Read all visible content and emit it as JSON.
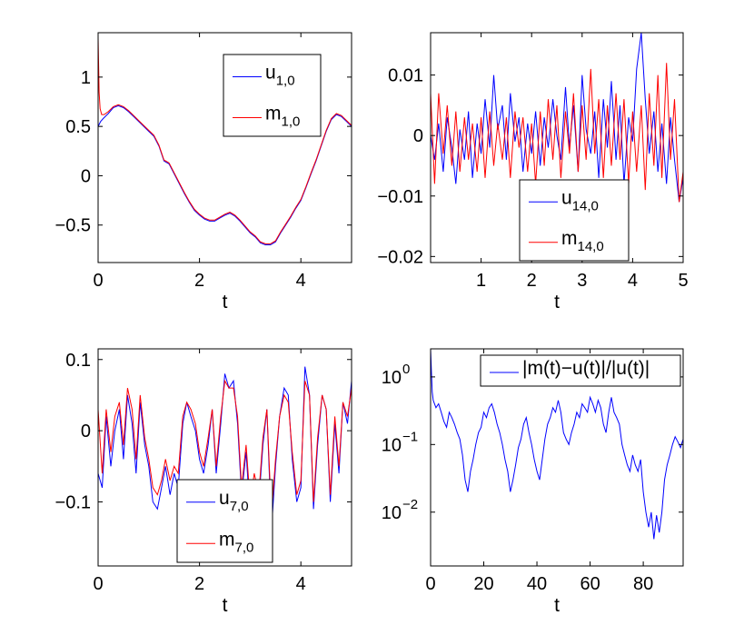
{
  "figure": {
    "background": "#ffffff"
  },
  "chart_data": [
    {
      "id": "tl",
      "type": "line",
      "xlabel": "t",
      "xlim": [
        0,
        5
      ],
      "ylim": [
        -0.88,
        1.45
      ],
      "yscale": "linear",
      "xticks": [
        0,
        2,
        4
      ],
      "xtick_labels": [
        "0",
        "2",
        "4"
      ],
      "yticks": [
        1,
        0.5,
        0,
        -0.5
      ],
      "ytick_labels": [
        "1",
        "0.5",
        "0",
        "−0.5"
      ],
      "legend_position": "top-right",
      "series": [
        {
          "name": "u",
          "sub": "1,0",
          "color": "#0000ff",
          "x": [
            0,
            0.02,
            0.05,
            0.1,
            0.2,
            0.3,
            0.4,
            0.5,
            0.6,
            0.7,
            0.8,
            0.9,
            1.0,
            1.1,
            1.2,
            1.3,
            1.4,
            1.5,
            1.6,
            1.7,
            1.8,
            1.9,
            2.0,
            2.1,
            2.2,
            2.3,
            2.4,
            2.5,
            2.6,
            2.7,
            2.8,
            2.9,
            3.0,
            3.1,
            3.2,
            3.3,
            3.4,
            3.5,
            3.6,
            3.7,
            3.8,
            3.9,
            4.0,
            4.1,
            4.2,
            4.3,
            4.4,
            4.5,
            4.6,
            4.7,
            4.8,
            4.9,
            5.0
          ],
          "y": [
            0.5,
            0.52,
            0.55,
            0.58,
            0.63,
            0.69,
            0.71,
            0.69,
            0.65,
            0.6,
            0.55,
            0.5,
            0.45,
            0.4,
            0.3,
            0.15,
            0.12,
            0.02,
            -0.08,
            -0.18,
            -0.27,
            -0.35,
            -0.4,
            -0.44,
            -0.46,
            -0.46,
            -0.43,
            -0.4,
            -0.38,
            -0.41,
            -0.46,
            -0.52,
            -0.58,
            -0.62,
            -0.68,
            -0.7,
            -0.7,
            -0.67,
            -0.58,
            -0.5,
            -0.42,
            -0.33,
            -0.25,
            -0.12,
            0.02,
            0.15,
            0.3,
            0.45,
            0.57,
            0.62,
            0.6,
            0.55,
            0.5
          ]
        },
        {
          "name": "m",
          "sub": "1,0",
          "color": "#ff0000",
          "x": [
            0,
            0.01,
            0.02,
            0.04,
            0.07,
            0.12,
            0.2,
            0.3,
            0.4,
            0.5,
            0.6,
            0.7,
            0.8,
            0.9,
            1.0,
            1.1,
            1.2,
            1.3,
            1.4,
            1.5,
            1.6,
            1.7,
            1.8,
            1.9,
            2.0,
            2.1,
            2.2,
            2.3,
            2.4,
            2.5,
            2.6,
            2.7,
            2.8,
            2.9,
            3.0,
            3.1,
            3.2,
            3.3,
            3.4,
            3.5,
            3.6,
            3.7,
            3.8,
            3.9,
            4.0,
            4.1,
            4.2,
            4.3,
            4.4,
            4.5,
            4.6,
            4.7,
            4.8,
            4.9,
            5.0
          ],
          "y": [
            1.4,
            1.1,
            0.85,
            0.68,
            0.62,
            0.62,
            0.65,
            0.7,
            0.72,
            0.7,
            0.66,
            0.61,
            0.56,
            0.51,
            0.46,
            0.41,
            0.31,
            0.16,
            0.13,
            0.03,
            -0.07,
            -0.17,
            -0.26,
            -0.34,
            -0.39,
            -0.43,
            -0.45,
            -0.45,
            -0.42,
            -0.39,
            -0.37,
            -0.4,
            -0.45,
            -0.51,
            -0.57,
            -0.61,
            -0.67,
            -0.69,
            -0.69,
            -0.66,
            -0.57,
            -0.49,
            -0.41,
            -0.32,
            -0.24,
            -0.11,
            0.03,
            0.16,
            0.31,
            0.46,
            0.58,
            0.63,
            0.61,
            0.56,
            0.51
          ]
        }
      ]
    },
    {
      "id": "tr",
      "type": "line",
      "xlabel": "t",
      "xlim": [
        0,
        5
      ],
      "ylim": [
        -0.021,
        0.017
      ],
      "yscale": "linear",
      "xticks": [
        1,
        2,
        3,
        4,
        5
      ],
      "xtick_labels": [
        "1",
        "2",
        "3",
        "4",
        "5"
      ],
      "yticks": [
        0.01,
        0,
        -0.01,
        -0.02
      ],
      "ytick_labels": [
        "0.01",
        "0",
        "−0.01",
        "−0.02"
      ],
      "legend_position": "bottom-center",
      "series": [
        {
          "name": "u",
          "sub": "14,0",
          "color": "#0000ff",
          "x": [
            0,
            0.08,
            0.16,
            0.25,
            0.33,
            0.42,
            0.5,
            0.58,
            0.67,
            0.75,
            0.83,
            0.92,
            1.0,
            1.08,
            1.17,
            1.25,
            1.33,
            1.42,
            1.5,
            1.58,
            1.67,
            1.75,
            1.83,
            1.92,
            2.0,
            2.08,
            2.17,
            2.25,
            2.33,
            2.42,
            2.5,
            2.58,
            2.67,
            2.75,
            2.83,
            2.92,
            3.0,
            3.08,
            3.17,
            3.25,
            3.33,
            3.42,
            3.5,
            3.58,
            3.67,
            3.75,
            3.83,
            3.92,
            4.0,
            4.08,
            4.17,
            4.25,
            4.33,
            4.42,
            4.5,
            4.58,
            4.67,
            4.75,
            4.83,
            4.92,
            5.0
          ],
          "y": [
            0.0,
            -0.004,
            0.002,
            -0.006,
            0.003,
            -0.002,
            -0.008,
            0.001,
            -0.004,
            0.004,
            -0.007,
            0.002,
            -0.003,
            0.006,
            -0.002,
            0.01,
            0.001,
            0.005,
            -0.004,
            0.007,
            -0.001,
            0.003,
            -0.006,
            0.002,
            -0.003,
            0.004,
            -0.005,
            0.003,
            -0.002,
            0.006,
            0.0,
            -0.004,
            0.008,
            -0.002,
            0.005,
            -0.006,
            0.01,
            0.001,
            -0.003,
            0.004,
            -0.007,
            0.006,
            -0.002,
            0.009,
            -0.004,
            0.005,
            -0.008,
            0.003,
            -0.001,
            0.011,
            0.017,
            0.006,
            -0.003,
            0.004,
            -0.006,
            0.002,
            -0.008,
            0.003,
            -0.004,
            -0.011,
            -0.007
          ]
        },
        {
          "name": "m",
          "sub": "14,0",
          "color": "#ff0000",
          "x": [
            0,
            0.08,
            0.16,
            0.25,
            0.33,
            0.42,
            0.5,
            0.58,
            0.67,
            0.75,
            0.83,
            0.92,
            1.0,
            1.08,
            1.17,
            1.25,
            1.33,
            1.42,
            1.5,
            1.58,
            1.67,
            1.75,
            1.83,
            1.92,
            2.0,
            2.08,
            2.17,
            2.25,
            2.33,
            2.42,
            2.5,
            2.58,
            2.67,
            2.75,
            2.83,
            2.92,
            3.0,
            3.08,
            3.17,
            3.25,
            3.33,
            3.42,
            3.5,
            3.58,
            3.67,
            3.75,
            3.83,
            3.92,
            4.0,
            4.08,
            4.17,
            4.25,
            4.33,
            4.42,
            4.5,
            4.58,
            4.67,
            4.75,
            4.83,
            4.92,
            5.0
          ],
          "y": [
            0.007,
            -0.008,
            0.007,
            -0.003,
            0.005,
            -0.005,
            0.004,
            -0.006,
            0.003,
            -0.004,
            0.002,
            -0.006,
            0.003,
            -0.007,
            0.004,
            -0.005,
            0.002,
            -0.004,
            0.003,
            -0.007,
            0.004,
            -0.002,
            0.003,
            -0.006,
            0.002,
            -0.008,
            0.004,
            -0.005,
            0.006,
            -0.004,
            0.005,
            -0.007,
            0.004,
            -0.003,
            0.007,
            -0.006,
            0.005,
            -0.004,
            0.011,
            -0.003,
            0.006,
            -0.007,
            0.005,
            -0.005,
            0.007,
            -0.004,
            0.006,
            -0.008,
            0.004,
            -0.006,
            0.005,
            -0.009,
            0.007,
            -0.005,
            0.01,
            -0.007,
            0.012,
            -0.004,
            0.006,
            -0.011,
            -0.006
          ]
        }
      ]
    },
    {
      "id": "bl",
      "type": "line",
      "xlabel": "t",
      "xlim": [
        0,
        5
      ],
      "ylim": [
        -0.19,
        0.115
      ],
      "yscale": "linear",
      "xticks": [
        0,
        2,
        4
      ],
      "xtick_labels": [
        "0",
        "2",
        "4"
      ],
      "yticks": [
        0.1,
        0,
        -0.1
      ],
      "ytick_labels": [
        "0.1",
        "0",
        "−0.1"
      ],
      "legend_position": "bottom-center",
      "series": [
        {
          "name": "u",
          "sub": "7,0",
          "color": "#0000ff",
          "x": [
            0,
            0.08,
            0.16,
            0.25,
            0.33,
            0.42,
            0.5,
            0.58,
            0.67,
            0.75,
            0.83,
            0.92,
            1.0,
            1.08,
            1.17,
            1.25,
            1.33,
            1.42,
            1.5,
            1.58,
            1.67,
            1.75,
            1.83,
            1.92,
            2.0,
            2.08,
            2.17,
            2.25,
            2.33,
            2.42,
            2.5,
            2.58,
            2.67,
            2.75,
            2.83,
            2.92,
            3.0,
            3.08,
            3.17,
            3.25,
            3.33,
            3.42,
            3.5,
            3.58,
            3.67,
            3.75,
            3.83,
            3.92,
            4.0,
            4.08,
            4.17,
            4.25,
            4.33,
            4.42,
            4.5,
            4.58,
            4.67,
            4.75,
            4.83,
            4.92,
            5.0
          ],
          "y": [
            -0.06,
            -0.08,
            0.02,
            -0.05,
            0.0,
            0.03,
            -0.04,
            0.05,
            0.01,
            -0.06,
            0.04,
            -0.02,
            -0.05,
            -0.1,
            -0.11,
            -0.08,
            -0.05,
            -0.09,
            -0.06,
            -0.08,
            0.01,
            0.04,
            0.02,
            0.0,
            -0.04,
            -0.06,
            -0.02,
            0.03,
            -0.06,
            0.01,
            0.08,
            0.06,
            0.07,
            0.01,
            -0.09,
            -0.03,
            -0.12,
            -0.07,
            -0.1,
            -0.02,
            0.03,
            -0.14,
            -0.05,
            0.02,
            0.06,
            0.05,
            -0.04,
            -0.1,
            -0.08,
            0.09,
            0.05,
            -0.11,
            -0.02,
            0.05,
            0.03,
            -0.1,
            0.01,
            -0.06,
            0.04,
            0.01,
            0.07
          ]
        },
        {
          "name": "m",
          "sub": "7,0",
          "color": "#ff0000",
          "x": [
            0,
            0.08,
            0.16,
            0.25,
            0.33,
            0.42,
            0.5,
            0.58,
            0.67,
            0.75,
            0.83,
            0.92,
            1.0,
            1.08,
            1.17,
            1.25,
            1.33,
            1.42,
            1.5,
            1.58,
            1.67,
            1.75,
            1.83,
            1.92,
            2.0,
            2.08,
            2.17,
            2.25,
            2.33,
            2.42,
            2.5,
            2.58,
            2.67,
            2.75,
            2.83,
            2.92,
            3.0,
            3.08,
            3.17,
            3.25,
            3.33,
            3.42,
            3.5,
            3.58,
            3.67,
            3.75,
            3.83,
            3.92,
            4.0,
            4.08,
            4.17,
            4.25,
            4.33,
            4.42,
            4.5,
            4.58,
            4.67,
            4.75,
            4.83,
            4.92,
            5.0
          ],
          "y": [
            0.03,
            -0.06,
            0.03,
            -0.03,
            0.02,
            0.04,
            -0.02,
            0.06,
            0.03,
            -0.04,
            0.05,
            -0.01,
            -0.04,
            -0.08,
            -0.09,
            -0.07,
            -0.04,
            -0.07,
            -0.05,
            -0.06,
            0.02,
            0.04,
            0.03,
            0.01,
            -0.03,
            -0.05,
            -0.01,
            0.03,
            -0.05,
            0.02,
            0.07,
            0.06,
            0.06,
            0.02,
            -0.08,
            -0.02,
            -0.1,
            -0.06,
            -0.09,
            -0.01,
            0.03,
            -0.12,
            -0.04,
            0.02,
            0.05,
            0.04,
            -0.03,
            -0.09,
            -0.07,
            0.07,
            0.05,
            -0.1,
            -0.01,
            0.05,
            0.03,
            -0.09,
            0.02,
            -0.05,
            0.04,
            0.02,
            0.06
          ]
        }
      ]
    },
    {
      "id": "br",
      "type": "line",
      "xlabel": "t",
      "xlim": [
        0,
        95
      ],
      "ylim": [
        0.0016,
        2.6
      ],
      "yscale": "log",
      "xticks": [
        0,
        20,
        40,
        60,
        80
      ],
      "xtick_labels": [
        "0",
        "20",
        "40",
        "60",
        "80"
      ],
      "yticks": [
        1,
        0.1,
        0.01
      ],
      "ytick_labels": [
        "10",
        "10",
        "10"
      ],
      "ytick_exps": [
        "0",
        "−1",
        "−2"
      ],
      "legend_position": "top-right",
      "series": [
        {
          "name": "|m(t)−u(t)|/|u(t)|",
          "sub": "",
          "color": "#0000ff",
          "x": [
            0,
            0.3,
            0.6,
            1,
            2,
            3,
            4,
            5,
            6,
            7,
            8,
            9,
            10,
            11,
            12,
            13,
            14,
            15,
            16,
            17,
            18,
            19,
            20,
            21,
            22,
            23,
            24,
            25,
            26,
            27,
            28,
            29,
            30,
            31,
            32,
            33,
            34,
            35,
            36,
            37,
            38,
            39,
            40,
            41,
            42,
            43,
            44,
            45,
            46,
            47,
            48,
            49,
            50,
            51,
            52,
            53,
            54,
            55,
            56,
            57,
            58,
            59,
            60,
            61,
            62,
            63,
            64,
            65,
            66,
            67,
            68,
            69,
            70,
            71,
            72,
            73,
            74,
            75,
            76,
            77,
            78,
            79,
            80,
            81,
            82,
            83,
            84,
            85,
            86,
            87,
            88,
            89,
            90,
            91,
            92,
            93,
            94,
            95
          ],
          "y": [
            2.6,
            1.2,
            0.6,
            0.45,
            0.35,
            0.4,
            0.3,
            0.22,
            0.18,
            0.3,
            0.25,
            0.2,
            0.15,
            0.12,
            0.07,
            0.03,
            0.02,
            0.04,
            0.06,
            0.1,
            0.15,
            0.18,
            0.3,
            0.25,
            0.35,
            0.4,
            0.3,
            0.2,
            0.15,
            0.1,
            0.06,
            0.04,
            0.02,
            0.03,
            0.05,
            0.09,
            0.12,
            0.2,
            0.25,
            0.15,
            0.1,
            0.06,
            0.04,
            0.03,
            0.06,
            0.12,
            0.2,
            0.25,
            0.35,
            0.3,
            0.45,
            0.3,
            0.15,
            0.12,
            0.1,
            0.15,
            0.2,
            0.3,
            0.25,
            0.4,
            0.35,
            0.3,
            0.5,
            0.4,
            0.3,
            0.45,
            0.35,
            0.2,
            0.15,
            0.3,
            0.5,
            0.3,
            0.25,
            0.2,
            0.1,
            0.07,
            0.05,
            0.04,
            0.07,
            0.05,
            0.04,
            0.06,
            0.02,
            0.01,
            0.006,
            0.01,
            0.004,
            0.009,
            0.005,
            0.01,
            0.03,
            0.05,
            0.07,
            0.1,
            0.13,
            0.11,
            0.09,
            0.12
          ]
        }
      ]
    }
  ]
}
